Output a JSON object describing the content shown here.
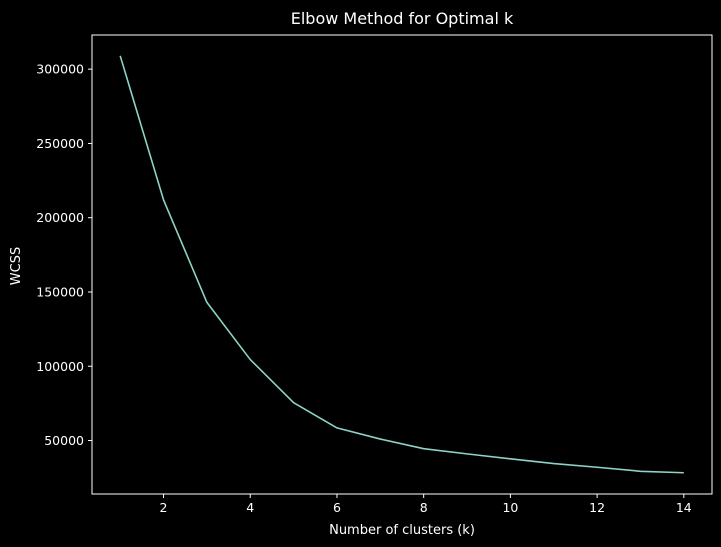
{
  "chart_data": {
    "type": "line",
    "title": "Elbow Method for Optimal k",
    "xlabel": "Number of clusters (k)",
    "ylabel": "WCSS",
    "x": [
      1,
      2,
      3,
      4,
      5,
      6,
      7,
      8,
      9,
      10,
      11,
      12,
      13,
      14
    ],
    "series": [
      {
        "values": [
          309000,
          212000,
          143000,
          104500,
          75500,
          58500,
          51000,
          44500,
          41000,
          37700,
          34500,
          32000,
          29300,
          28300
        ]
      }
    ],
    "xlim": [
      0.35,
      14.65
    ],
    "ylim": [
      14000,
      323000
    ],
    "xticks": [
      2,
      4,
      6,
      8,
      10,
      12,
      14
    ],
    "yticks": [
      50000,
      100000,
      150000,
      200000,
      250000,
      300000
    ],
    "xtick_labels": [
      "2",
      "4",
      "6",
      "8",
      "10",
      "12",
      "14"
    ],
    "ytick_labels": [
      "50000",
      "100000",
      "150000",
      "200000",
      "250000",
      "300000"
    ],
    "grid": false,
    "legend": "none",
    "colors": {
      "background": "#000000",
      "line": "#8dd3c7",
      "text": "#ffffff",
      "axes": "#ffffff"
    }
  }
}
